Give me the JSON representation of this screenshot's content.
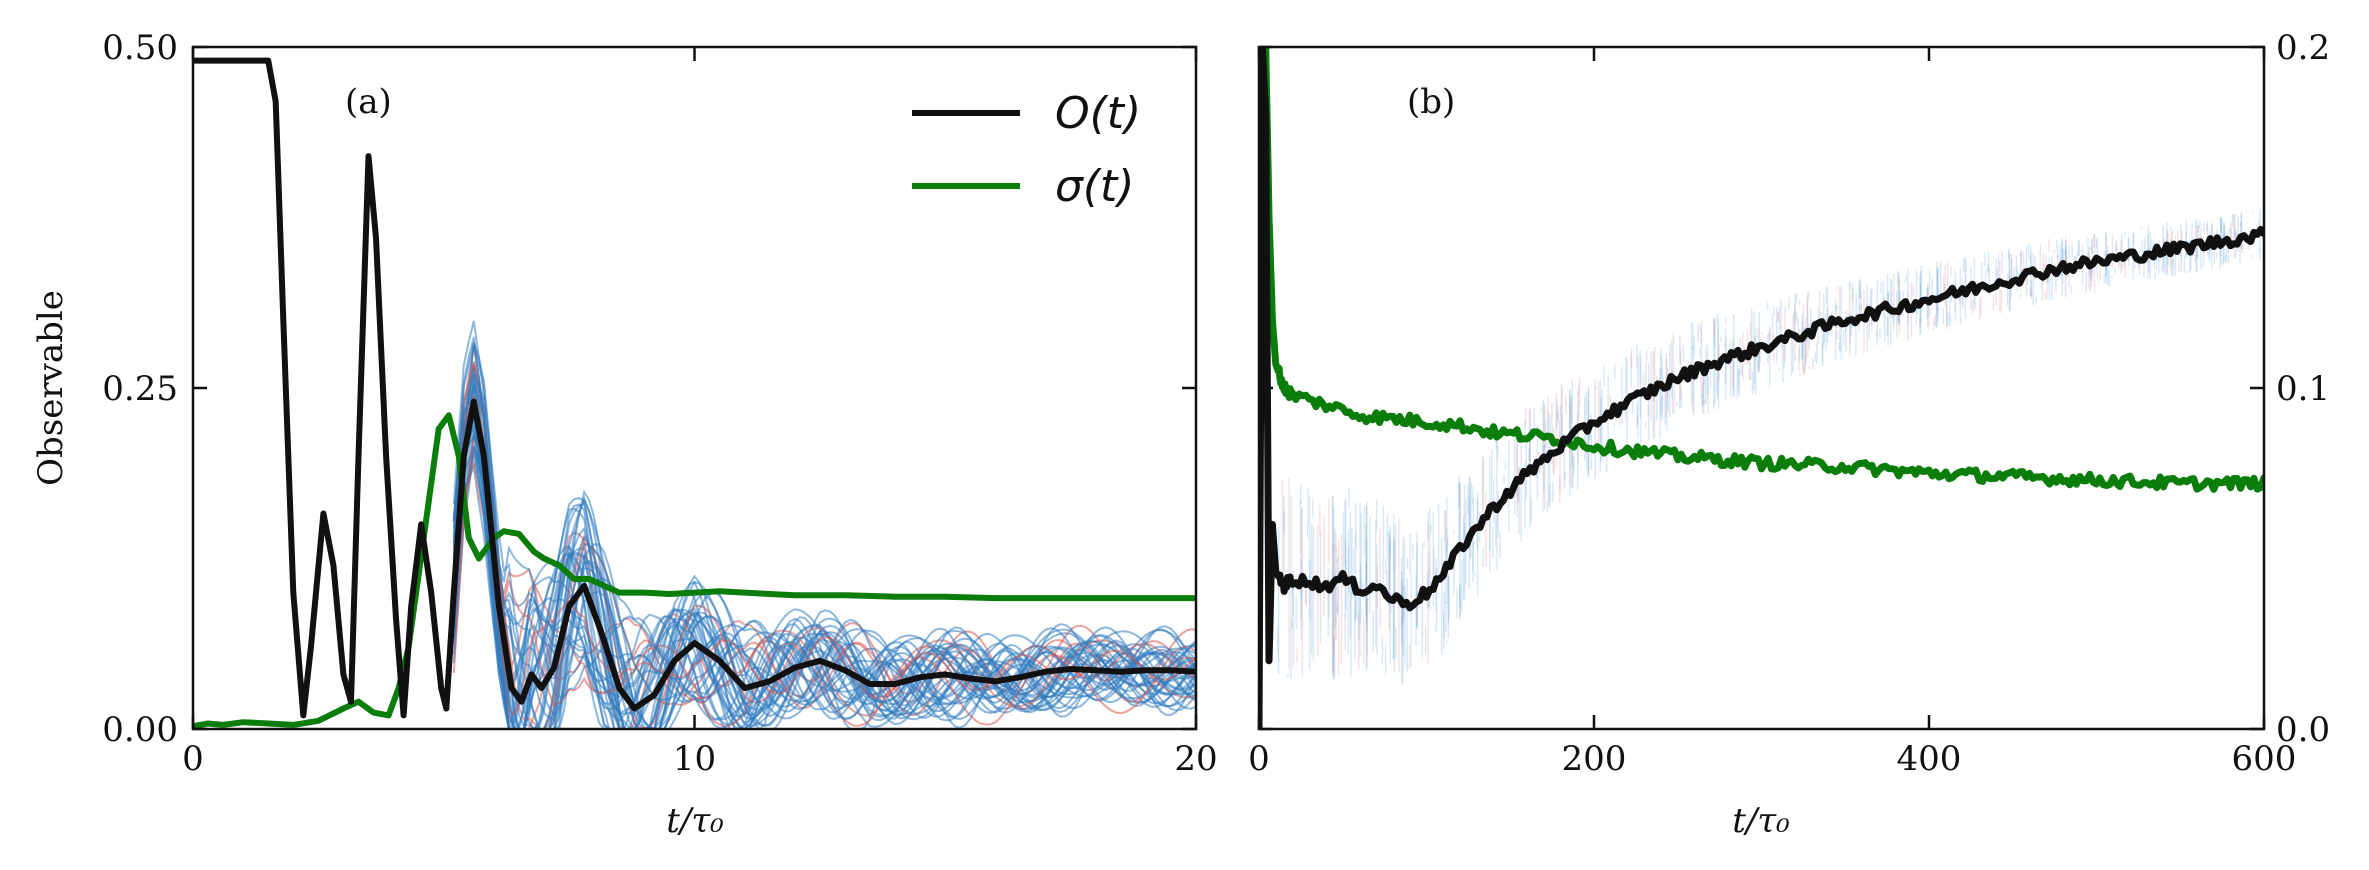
{
  "chart_data": [
    {
      "type": "line",
      "panel_label": "(a)",
      "xlabel": "t/τ₀",
      "ylabel": "Observable",
      "xlim": [
        0,
        20
      ],
      "ylim": [
        0,
        0.5
      ],
      "x_ticks": [
        "0",
        "10",
        "20"
      ],
      "y_ticks": [
        "0.00",
        "0.25",
        "0.50"
      ],
      "legend": {
        "position": "top-right",
        "entries": [
          "O(t)",
          "σ(t)"
        ]
      },
      "series": [
        {
          "name": "O(t)",
          "color": "#111111",
          "points": [
            [
              0,
              0.49
            ],
            [
              1.5,
              0.49
            ],
            [
              1.65,
              0.46
            ],
            [
              1.8,
              0.3
            ],
            [
              2.0,
              0.1
            ],
            [
              2.2,
              0.01
            ],
            [
              2.35,
              0.06
            ],
            [
              2.6,
              0.158
            ],
            [
              2.8,
              0.12
            ],
            [
              3.0,
              0.04
            ],
            [
              3.15,
              0.02
            ],
            [
              3.3,
              0.2
            ],
            [
              3.5,
              0.42
            ],
            [
              3.65,
              0.36
            ],
            [
              3.85,
              0.2
            ],
            [
              4.05,
              0.08
            ],
            [
              4.2,
              0.01
            ],
            [
              4.35,
              0.09
            ],
            [
              4.55,
              0.15
            ],
            [
              4.75,
              0.1
            ],
            [
              4.95,
              0.03
            ],
            [
              5.05,
              0.015
            ],
            [
              5.2,
              0.1
            ],
            [
              5.4,
              0.2
            ],
            [
              5.6,
              0.24
            ],
            [
              5.8,
              0.2
            ],
            [
              6.1,
              0.09
            ],
            [
              6.35,
              0.03
            ],
            [
              6.55,
              0.02
            ],
            [
              6.75,
              0.04
            ],
            [
              6.95,
              0.03
            ],
            [
              7.2,
              0.045
            ],
            [
              7.5,
              0.09
            ],
            [
              7.8,
              0.105
            ],
            [
              8.15,
              0.07
            ],
            [
              8.5,
              0.03
            ],
            [
              8.8,
              0.015
            ],
            [
              9.2,
              0.025
            ],
            [
              9.6,
              0.05
            ],
            [
              10.0,
              0.063
            ],
            [
              10.5,
              0.05
            ],
            [
              11.0,
              0.03
            ],
            [
              11.5,
              0.035
            ],
            [
              12.0,
              0.045
            ],
            [
              12.5,
              0.05
            ],
            [
              13.0,
              0.043
            ],
            [
              13.5,
              0.033
            ],
            [
              14.0,
              0.033
            ],
            [
              14.5,
              0.038
            ],
            [
              15.0,
              0.04
            ],
            [
              15.5,
              0.037
            ],
            [
              16.0,
              0.035
            ],
            [
              16.5,
              0.038
            ],
            [
              17.0,
              0.042
            ],
            [
              17.5,
              0.044
            ],
            [
              18.0,
              0.043
            ],
            [
              18.5,
              0.042
            ],
            [
              19.0,
              0.043
            ],
            [
              19.5,
              0.043
            ],
            [
              20.0,
              0.042
            ]
          ]
        },
        {
          "name": "σ(t)",
          "color": "#0b7d0b",
          "points": [
            [
              0,
              0.002
            ],
            [
              0.3,
              0.004
            ],
            [
              0.6,
              0.003
            ],
            [
              1.0,
              0.005
            ],
            [
              1.5,
              0.004
            ],
            [
              2.0,
              0.003
            ],
            [
              2.5,
              0.006
            ],
            [
              3.0,
              0.015
            ],
            [
              3.3,
              0.02
            ],
            [
              3.6,
              0.012
            ],
            [
              3.9,
              0.01
            ],
            [
              4.1,
              0.03
            ],
            [
              4.3,
              0.06
            ],
            [
              4.6,
              0.14
            ],
            [
              4.9,
              0.22
            ],
            [
              5.1,
              0.23
            ],
            [
              5.3,
              0.2
            ],
            [
              5.5,
              0.14
            ],
            [
              5.7,
              0.125
            ],
            [
              6.0,
              0.14
            ],
            [
              6.2,
              0.145
            ],
            [
              6.5,
              0.143
            ],
            [
              6.8,
              0.13
            ],
            [
              7.0,
              0.125
            ],
            [
              7.3,
              0.12
            ],
            [
              7.6,
              0.11
            ],
            [
              7.9,
              0.11
            ],
            [
              8.2,
              0.105
            ],
            [
              8.5,
              0.1
            ],
            [
              9.0,
              0.1
            ],
            [
              9.5,
              0.099
            ],
            [
              10.0,
              0.1
            ],
            [
              10.5,
              0.101
            ],
            [
              11.0,
              0.1
            ],
            [
              11.5,
              0.099
            ],
            [
              12.0,
              0.098
            ],
            [
              13.0,
              0.098
            ],
            [
              14.0,
              0.097
            ],
            [
              15.0,
              0.097
            ],
            [
              16.0,
              0.096
            ],
            [
              17.0,
              0.096
            ],
            [
              18.0,
              0.096
            ],
            [
              19.0,
              0.096
            ],
            [
              20.0,
              0.096
            ]
          ]
        }
      ]
    },
    {
      "type": "line",
      "panel_label": "(b)",
      "xlabel": "t/τ₀",
      "xlim": [
        0,
        600
      ],
      "ylim": [
        0,
        0.2
      ],
      "x_ticks": [
        "0",
        "200",
        "400",
        "600"
      ],
      "y_ticks_right": [
        "0.0",
        "0.1",
        "0.2"
      ],
      "series": [
        {
          "name": "O(t)",
          "color": "#111111",
          "points": [
            [
              0,
              0.0
            ],
            [
              2,
              0.2
            ],
            [
              4,
              0.18
            ],
            [
              6,
              0.02
            ],
            [
              8,
              0.06
            ],
            [
              10,
              0.046
            ],
            [
              15,
              0.042
            ],
            [
              20,
              0.044
            ],
            [
              30,
              0.043
            ],
            [
              40,
              0.042
            ],
            [
              50,
              0.044
            ],
            [
              60,
              0.041
            ],
            [
              70,
              0.042
            ],
            [
              80,
              0.038
            ],
            [
              90,
              0.037
            ],
            [
              100,
              0.04
            ],
            [
              110,
              0.045
            ],
            [
              120,
              0.053
            ],
            [
              140,
              0.065
            ],
            [
              160,
              0.075
            ],
            [
              180,
              0.083
            ],
            [
              200,
              0.09
            ],
            [
              225,
              0.097
            ],
            [
              250,
              0.103
            ],
            [
              275,
              0.108
            ],
            [
              300,
              0.112
            ],
            [
              325,
              0.116
            ],
            [
              350,
              0.12
            ],
            [
              375,
              0.123
            ],
            [
              400,
              0.126
            ],
            [
              425,
              0.129
            ],
            [
              450,
              0.132
            ],
            [
              475,
              0.135
            ],
            [
              500,
              0.137
            ],
            [
              525,
              0.139
            ],
            [
              550,
              0.141
            ],
            [
              575,
              0.143
            ],
            [
              600,
              0.145
            ]
          ]
        },
        {
          "name": "σ(t)",
          "color": "#0b7d0b",
          "points": [
            [
              0,
              0.2
            ],
            [
              4,
              0.2
            ],
            [
              6,
              0.15
            ],
            [
              8,
              0.12
            ],
            [
              10,
              0.107
            ],
            [
              15,
              0.1
            ],
            [
              20,
              0.098
            ],
            [
              40,
              0.095
            ],
            [
              60,
              0.092
            ],
            [
              80,
              0.091
            ],
            [
              100,
              0.09
            ],
            [
              120,
              0.089
            ],
            [
              140,
              0.087
            ],
            [
              160,
              0.086
            ],
            [
              180,
              0.085
            ],
            [
              200,
              0.083
            ],
            [
              250,
              0.08
            ],
            [
              300,
              0.078
            ],
            [
              350,
              0.077
            ],
            [
              400,
              0.075
            ],
            [
              450,
              0.074
            ],
            [
              500,
              0.073
            ],
            [
              550,
              0.072
            ],
            [
              600,
              0.072
            ]
          ]
        }
      ]
    }
  ]
}
